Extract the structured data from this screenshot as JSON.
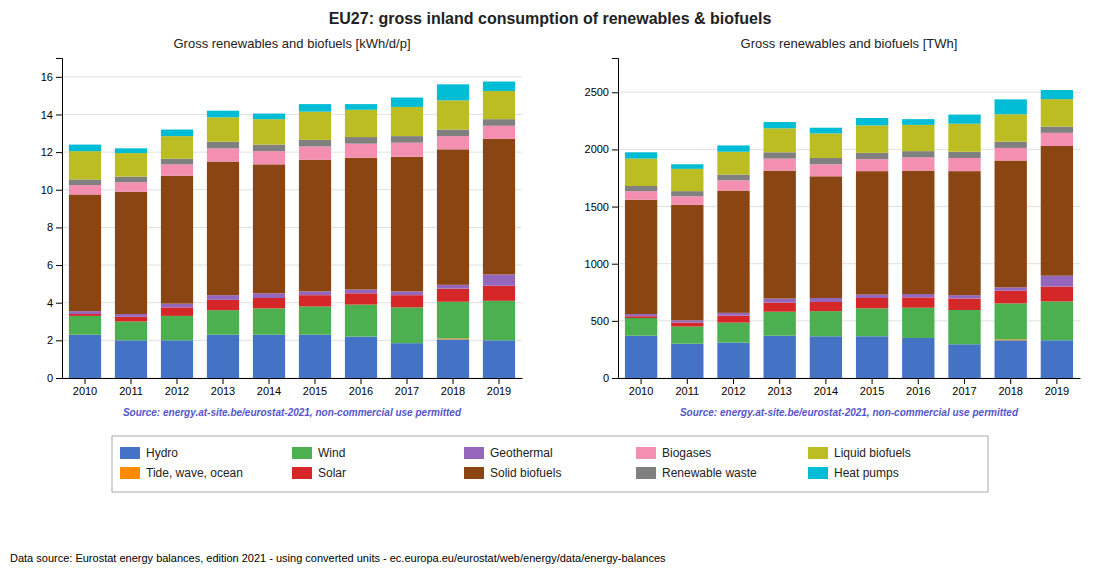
{
  "title": "EU27: gross inland consumption of renewables & biofuels",
  "annotations": [
    "Data source: Eurostat energy balances, edition 2021 - using converted units - ec.europa.eu/eurostat/web/energy/data/energy-balances"
  ],
  "chart_data": [
    {
      "type": "bar",
      "stacked": true,
      "grid": true,
      "legend": "bottom",
      "title": "Gross renewables and biofuels [kWh/d/p]",
      "annotations": [
        "Source: energy.at-site.be/eurostat-2021, non-commercial use permitted"
      ],
      "categories": [
        "2010",
        "2011",
        "2012",
        "2013",
        "2014",
        "2015",
        "2016",
        "2017",
        "2018",
        "2019"
      ],
      "series": [
        {
          "name": "Hydro",
          "color": "#4472c4",
          "values": [
            2.3,
            2.0,
            2.0,
            2.3,
            2.3,
            2.3,
            2.2,
            1.85,
            2.05,
            2.0
          ]
        },
        {
          "name": "Tide, wave, ocean",
          "color": "#ff8c00",
          "values": [
            0.0,
            0.0,
            0.0,
            0.0,
            0.0,
            0.0,
            0.0,
            0.0,
            0.05,
            0.0
          ]
        },
        {
          "name": "Wind",
          "color": "#4caf50",
          "values": [
            1.0,
            1.0,
            1.3,
            1.3,
            1.4,
            1.5,
            1.7,
            1.9,
            1.95,
            2.1
          ]
        },
        {
          "name": "Solar",
          "color": "#d62728",
          "values": [
            0.1,
            0.25,
            0.45,
            0.55,
            0.55,
            0.6,
            0.6,
            0.65,
            0.7,
            0.8
          ]
        },
        {
          "name": "Geothermal",
          "color": "#9467bd",
          "values": [
            0.15,
            0.15,
            0.2,
            0.25,
            0.25,
            0.2,
            0.2,
            0.2,
            0.2,
            0.6
          ]
        },
        {
          "name": "Solid biofuels",
          "color": "#8b4513",
          "values": [
            6.2,
            6.5,
            6.8,
            7.1,
            6.85,
            7.0,
            7.0,
            7.15,
            7.2,
            7.2
          ]
        },
        {
          "name": "Biogases",
          "color": "#f48fb1",
          "values": [
            0.5,
            0.5,
            0.6,
            0.7,
            0.7,
            0.7,
            0.75,
            0.75,
            0.7,
            0.7
          ]
        },
        {
          "name": "Renewable waste",
          "color": "#808080",
          "values": [
            0.3,
            0.3,
            0.3,
            0.35,
            0.35,
            0.35,
            0.35,
            0.35,
            0.35,
            0.35
          ]
        },
        {
          "name": "Liquid biofuels",
          "color": "#bcbd22",
          "values": [
            1.5,
            1.25,
            1.2,
            1.3,
            1.35,
            1.5,
            1.45,
            1.55,
            1.55,
            1.5
          ]
        },
        {
          "name": "Heat pumps",
          "color": "#00bcd4",
          "values": [
            0.35,
            0.25,
            0.35,
            0.35,
            0.3,
            0.4,
            0.3,
            0.5,
            0.85,
            0.5
          ]
        }
      ],
      "ylim": [
        0,
        17
      ],
      "yticks": [
        0,
        2,
        4,
        6,
        8,
        10,
        12,
        14,
        16
      ]
    },
    {
      "type": "bar",
      "stacked": true,
      "grid": true,
      "title": "Gross renewables and biofuels [TWh]",
      "annotations": [
        "Source: energy.at-site.be/eurostat-2021, non-commercial use permitted"
      ],
      "categories": [
        "2010",
        "2011",
        "2012",
        "2013",
        "2014",
        "2015",
        "2016",
        "2017",
        "2018",
        "2019"
      ],
      "series": [
        {
          "name": "Hydro",
          "color": "#4472c4",
          "values": [
            370,
            300,
            310,
            370,
            365,
            365,
            350,
            295,
            330,
            330
          ]
        },
        {
          "name": "Tide, wave, ocean",
          "color": "#ff8c00",
          "values": [
            0,
            0,
            0,
            0,
            0,
            0,
            0,
            0,
            8,
            0
          ]
        },
        {
          "name": "Wind",
          "color": "#4caf50",
          "values": [
            155,
            150,
            175,
            210,
            220,
            245,
            265,
            300,
            315,
            340
          ]
        },
        {
          "name": "Solar",
          "color": "#d62728",
          "values": [
            15,
            35,
            60,
            80,
            80,
            90,
            90,
            100,
            110,
            130
          ]
        },
        {
          "name": "Geothermal",
          "color": "#9467bd",
          "values": [
            20,
            20,
            25,
            35,
            35,
            30,
            30,
            30,
            30,
            95
          ]
        },
        {
          "name": "Solid biofuels",
          "color": "#8b4513",
          "values": [
            1000,
            1010,
            1070,
            1120,
            1065,
            1080,
            1080,
            1085,
            1110,
            1135
          ]
        },
        {
          "name": "Biogases",
          "color": "#f48fb1",
          "values": [
            75,
            75,
            90,
            105,
            105,
            105,
            115,
            115,
            110,
            115
          ]
        },
        {
          "name": "Renewable waste",
          "color": "#808080",
          "values": [
            45,
            45,
            50,
            55,
            55,
            55,
            55,
            55,
            55,
            55
          ]
        },
        {
          "name": "Liquid biofuels",
          "color": "#bcbd22",
          "values": [
            240,
            195,
            200,
            210,
            215,
            240,
            230,
            245,
            240,
            240
          ]
        },
        {
          "name": "Heat pumps",
          "color": "#00bcd4",
          "values": [
            55,
            40,
            55,
            55,
            50,
            65,
            50,
            80,
            130,
            80
          ]
        }
      ],
      "ylim": [
        0,
        2800
      ],
      "yticks": [
        0,
        500,
        1000,
        1500,
        2000,
        2500
      ]
    }
  ]
}
